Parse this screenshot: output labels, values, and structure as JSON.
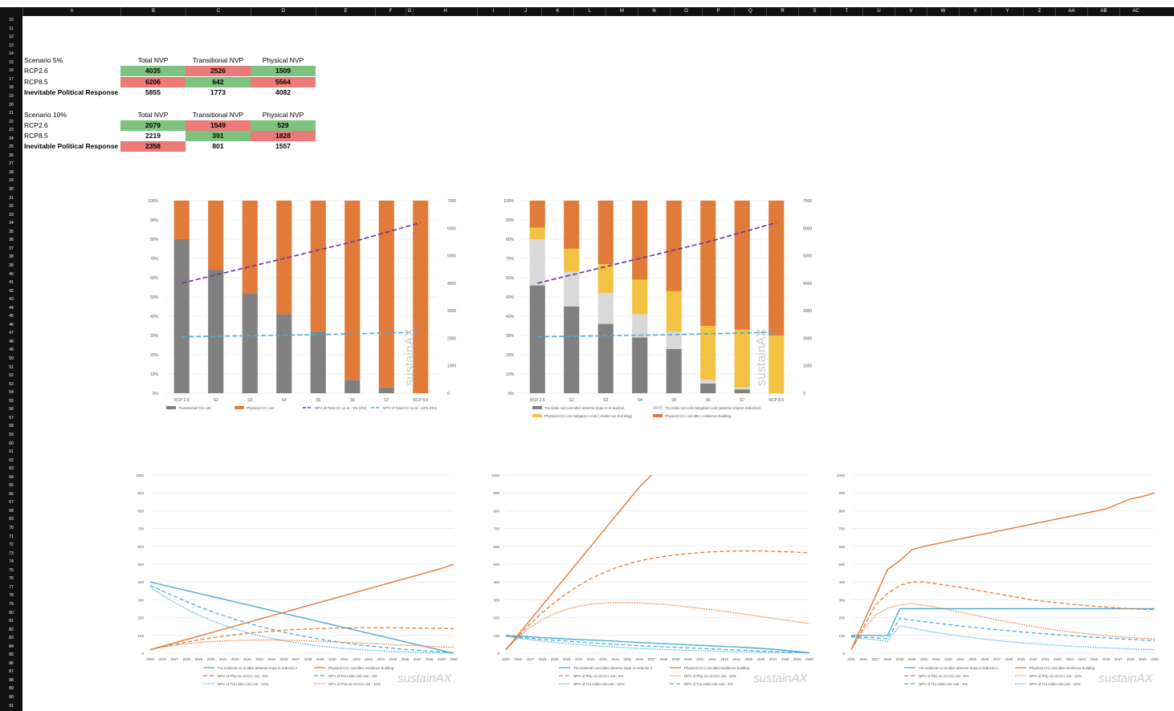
{
  "columns": [
    "A",
    "B",
    "C",
    "D",
    "E",
    "F",
    "G",
    "H",
    "I",
    "J",
    "K",
    "L",
    "M",
    "N",
    "O",
    "P",
    "Q",
    "R",
    "S",
    "T",
    "U",
    "V",
    "W",
    "X",
    "Y",
    "Z",
    "AA",
    "AB",
    "AC"
  ],
  "row_start": 10,
  "row_end": 91,
  "table5": {
    "title": "Scenario 5%",
    "headers": [
      "Total NVP",
      "Transitional NVP",
      "Physical NVP"
    ],
    "rows": [
      {
        "label": "RCP2.6",
        "values": [
          "4035",
          "2526",
          "1509"
        ]
      },
      {
        "label": "RCP8.5",
        "values": [
          "6206",
          "642",
          "5564"
        ]
      },
      {
        "label": "Inevitable Political Response",
        "values": [
          "5855",
          "1773",
          "4082"
        ]
      }
    ]
  },
  "table10": {
    "title": "Scenario 10%",
    "headers": [
      "Total NVP",
      "Transitional NVP",
      "Physical NVP"
    ],
    "rows": [
      {
        "label": "RCP2.6",
        "values": [
          "2079",
          "1549",
          "529"
        ]
      },
      {
        "label": "RCP8.5",
        "values": [
          "2219",
          "391",
          "1828"
        ]
      },
      {
        "label": "Inevitable Political Response",
        "values": [
          "2358",
          "801",
          "1557"
        ]
      }
    ]
  },
  "colors": {
    "grey": "#808080",
    "orange": "#e07b39",
    "lightgrey": "#d9d9d9",
    "yellow": "#f4c242",
    "purple": "#7030a0",
    "blue": "#4bacd6",
    "green": "#7dc27f",
    "red": "#eb7a79"
  },
  "watermark": "sustainAX",
  "chart_data": [
    {
      "type": "bar",
      "categories": [
        "RCP 2.6",
        "S2",
        "S3",
        "S4",
        "S5",
        "S6",
        "S7",
        "RCP 8.5"
      ],
      "yticks": [
        "0%",
        "10%",
        "20%",
        "30%",
        "40%",
        "50%",
        "60%",
        "70%",
        "80%",
        "90%",
        "100%"
      ],
      "y2ticks": [
        "0",
        "1000",
        "2000",
        "3000",
        "4000",
        "5000",
        "6000",
        "7000"
      ],
      "series": [
        {
          "name": "Transitional CCc ost",
          "values": [
            80,
            64,
            52,
            41,
            32,
            7,
            3,
            0
          ]
        },
        {
          "name": "Physical CCc ost",
          "values": [
            20,
            36,
            48,
            59,
            68,
            93,
            97,
            100
          ]
        }
      ],
      "lines": [
        {
          "name": "NPV of Total CC co st - 5% (rhs)",
          "values": [
            4000,
            4300,
            4600,
            4900,
            5200,
            5500,
            5850,
            6200
          ]
        },
        {
          "name": "NPV of Total CC co st - 10% (rhs)",
          "values": [
            2050,
            2070,
            2090,
            2110,
            2130,
            2160,
            2190,
            2220
          ]
        }
      ],
      "y2lim": [
        0,
        7000
      ]
    },
    {
      "type": "bar",
      "categories": [
        "RCP 2.6",
        "S2",
        "S3",
        "S4",
        "S5",
        "S6",
        "S7",
        "RCP 8.5"
      ],
      "yticks": [
        "0%",
        "10%",
        "20%",
        "30%",
        "40%",
        "50%",
        "60%",
        "70%",
        "80%",
        "90%",
        "100%"
      ],
      "y2ticks": [
        "0",
        "1000",
        "2000",
        "3000",
        "4000",
        "5000",
        "6000",
        "7000"
      ],
      "series": [
        {
          "name": "Tra nsitio nal cost after adverse impa ct re duction",
          "values": [
            56,
            45,
            36,
            29,
            23,
            5,
            2,
            0
          ]
        },
        {
          "name": "Tra nsitio nal cost mitigation cost (adverse impact reduction)",
          "values": [
            24,
            18,
            16,
            12,
            9,
            2,
            1,
            0
          ]
        },
        {
          "name": "Physical CCc ost mitigatio n cost ( resilie nce buil ding)",
          "values": [
            6,
            12,
            15,
            18,
            21,
            28,
            30,
            30
          ]
        },
        {
          "name": "Physical CCc ost afte r resilience building",
          "values": [
            14,
            25,
            33,
            41,
            47,
            65,
            67,
            70
          ]
        }
      ],
      "lines": [
        {
          "name": "NPV of To tal CC cost - 5% (rhs)",
          "values": [
            4000,
            4300,
            4600,
            4900,
            5200,
            5500,
            5850,
            6200
          ]
        },
        {
          "name": "NPV of Total CC co st - 10% (rhs)",
          "values": [
            2050,
            2070,
            2090,
            2110,
            2130,
            2160,
            2190,
            2220
          ]
        }
      ],
      "y2lim": [
        0,
        7000
      ]
    },
    {
      "type": "line",
      "x": [
        "2025",
        "2026",
        "2027",
        "2028",
        "2029",
        "2030",
        "2031",
        "2032",
        "2033",
        "2034",
        "2035",
        "2036",
        "2037",
        "2038",
        "2039",
        "2040",
        "2041",
        "2042",
        "2043",
        "2044",
        "2045",
        "2046",
        "2047",
        "2048",
        "2049",
        "2050"
      ],
      "yticks": [
        "0",
        "100",
        "200",
        "300",
        "400",
        "500",
        "600",
        "700",
        "800",
        "900",
        "1000"
      ],
      "ylim": [
        0,
        1000
      ],
      "series": [
        {
          "name": "Tra nsitional co st after adverse impa ct reductio n",
          "values": [
            400,
            384,
            368,
            352,
            336,
            320,
            304,
            288,
            272,
            256,
            240,
            224,
            208,
            192,
            176,
            160,
            144,
            128,
            112,
            96,
            80,
            64,
            48,
            32,
            16,
            0
          ]
        },
        {
          "name": "Physical CCc ost after resilience building",
          "values": [
            20,
            39,
            58,
            77,
            96,
            115,
            134,
            153,
            172,
            191,
            210,
            229,
            248,
            267,
            286,
            305,
            324,
            343,
            362,
            381,
            400,
            419,
            438,
            457,
            476,
            500
          ]
        },
        {
          "name": "NPV of Phy sic al CCc ost - 5%",
          "values": [
            20,
            36,
            50,
            63,
            75,
            86,
            95,
            104,
            112,
            118,
            124,
            129,
            133,
            136,
            139,
            141,
            142,
            143,
            143,
            143,
            143,
            142,
            141,
            140,
            139,
            138
          ]
        },
        {
          "name": "NPV of Tra nsitio nal cost - 5%",
          "values": [
            380,
            350,
            320,
            290,
            262,
            236,
            212,
            190,
            170,
            151,
            134,
            118,
            104,
            91,
            79,
            68,
            58,
            49,
            41,
            34,
            28,
            22,
            17,
            12,
            8,
            4
          ]
        },
        {
          "name": "NPV of Tra nsitio nal cost - 10%",
          "values": [
            370,
            325,
            285,
            248,
            214,
            185,
            159,
            136,
            116,
            98,
            83,
            70,
            59,
            49,
            40,
            33,
            27,
            22,
            17,
            13,
            10,
            7,
            5,
            3,
            2,
            1
          ]
        },
        {
          "name": "NPV of Phy sic al CCc ost - 10%",
          "values": [
            20,
            34,
            45,
            53,
            60,
            65,
            69,
            72,
            73,
            74,
            74,
            73,
            71,
            69,
            67,
            64,
            61,
            58,
            55,
            52,
            48,
            45,
            42,
            39,
            36,
            33
          ]
        }
      ]
    },
    {
      "type": "line",
      "x": [
        "2025",
        "2026",
        "2027",
        "2028",
        "2029",
        "2030",
        "2031",
        "2032",
        "2033",
        "2034",
        "2035",
        "2036",
        "2037",
        "2038",
        "2039",
        "2040",
        "2041",
        "2042",
        "2043",
        "2044",
        "2045",
        "2046",
        "2047",
        "2048",
        "2049",
        "2050"
      ],
      "yticks": [
        "0",
        "100",
        "200",
        "300",
        "400",
        "500",
        "600",
        "700",
        "800",
        "900",
        "1000"
      ],
      "ylim": [
        0,
        1000
      ],
      "series": [
        {
          "name": "Tra nsitional cost after adverse impa ct reductio n",
          "values": [
            100,
            96,
            92,
            88,
            84,
            80,
            77,
            74,
            71,
            68,
            64,
            60,
            57,
            54,
            51,
            47,
            44,
            41,
            38,
            35,
            31,
            27,
            22,
            16,
            9,
            2
          ]
        },
        {
          "name": "Physical CCc ost after resilience building",
          "values": [
            20,
            103,
            186,
            269,
            352,
            435,
            518,
            601,
            684,
            767,
            850,
            933,
            1000,
            null,
            null,
            null,
            null,
            null,
            null,
            null,
            null,
            null,
            null,
            null,
            null,
            null
          ]
        },
        {
          "name": "NPV of Phy sic al CCc ost - 5%",
          "values": [
            20,
            95,
            165,
            228,
            285,
            335,
            380,
            418,
            450,
            478,
            500,
            518,
            532,
            543,
            552,
            559,
            565,
            569,
            572,
            574,
            574,
            574,
            572,
            570,
            567,
            563
          ]
        },
        {
          "name": "NPV of Phy sic al CCc ost - 10%",
          "values": [
            20,
            88,
            145,
            188,
            222,
            247,
            264,
            275,
            281,
            284,
            284,
            282,
            278,
            273,
            267,
            260,
            252,
            244,
            235,
            226,
            216,
            206,
            196,
            186,
            176,
            166
          ]
        },
        {
          "name": "NPV of Tra nsitio nal cost - 10%",
          "values": [
            95,
            85,
            76,
            68,
            61,
            55,
            49,
            44,
            39,
            35,
            31,
            27,
            24,
            21,
            18,
            16,
            14,
            12,
            10,
            8,
            7,
            6,
            5,
            4,
            3,
            2
          ]
        },
        {
          "name": "NPV of Tra nsitio nal cost - 5%",
          "values": [
            97,
            90,
            84,
            78,
            73,
            68,
            63,
            58,
            54,
            50,
            46,
            42,
            39,
            36,
            33,
            30,
            27,
            24,
            21,
            18,
            15,
            12,
            10,
            7,
            5,
            3
          ]
        }
      ]
    },
    {
      "type": "line",
      "x": [
        "2025",
        "2026",
        "2027",
        "2028",
        "2029",
        "2030",
        "2031",
        "2032",
        "2033",
        "2034",
        "2035",
        "2036",
        "2037",
        "2038",
        "2039",
        "2040",
        "2041",
        "2042",
        "2043",
        "2044",
        "2045",
        "2046",
        "2047",
        "2048",
        "2049",
        "2050"
      ],
      "yticks": [
        "0",
        "100",
        "200",
        "300",
        "400",
        "500",
        "600",
        "700",
        "800",
        "900",
        "1000"
      ],
      "ylim": [
        0,
        1000
      ],
      "series": [
        {
          "name": "Tra nsitional co st after adverse impa ct reductio n",
          "values": [
            100,
            100,
            100,
            100,
            250,
            250,
            250,
            250,
            250,
            250,
            250,
            250,
            250,
            250,
            250,
            250,
            250,
            250,
            250,
            250,
            250,
            250,
            250,
            250,
            250,
            250
          ]
        },
        {
          "name": "Physical CCc ost after resilience building",
          "values": [
            20,
            170,
            320,
            470,
            520,
            580,
            600,
            614,
            628,
            642,
            656,
            670,
            684,
            698,
            712,
            726,
            740,
            754,
            768,
            782,
            796,
            810,
            838,
            866,
            880,
            900
          ]
        },
        {
          "name": "NPV of Phy sic al CCc ost - 5%",
          "values": [
            20,
            143,
            272,
            336,
            380,
            400,
            400,
            390,
            380,
            370,
            358,
            346,
            334,
            322,
            310,
            298,
            290,
            283,
            276,
            270,
            264,
            259,
            254,
            250,
            247,
            245
          ]
        },
        {
          "name": "NPV of Phy sic al CCc ost - 10%",
          "values": [
            20,
            130,
            214,
            253,
            272,
            278,
            270,
            258,
            244,
            230,
            216,
            202,
            188,
            175,
            162,
            150,
            139,
            129,
            120,
            112,
            105,
            99,
            93,
            88,
            84,
            80
          ]
        },
        {
          "name": "NPV of Tra nsitio nal cost - 5%",
          "values": [
            95,
            90,
            86,
            82,
            195,
            186,
            177,
            169,
            161,
            153,
            146,
            139,
            132,
            126,
            120,
            114,
            109,
            104,
            99,
            94,
            90,
            86,
            82,
            78,
            74,
            70
          ]
        },
        {
          "name": "NPV of Tra nsitio nal cost - 10%",
          "values": [
            90,
            82,
            75,
            68,
            155,
            141,
            128,
            116,
            106,
            96,
            87,
            79,
            72,
            65,
            59,
            54,
            49,
            44,
            40,
            36,
            33,
            30,
            27,
            24,
            22,
            20
          ]
        }
      ]
    }
  ]
}
